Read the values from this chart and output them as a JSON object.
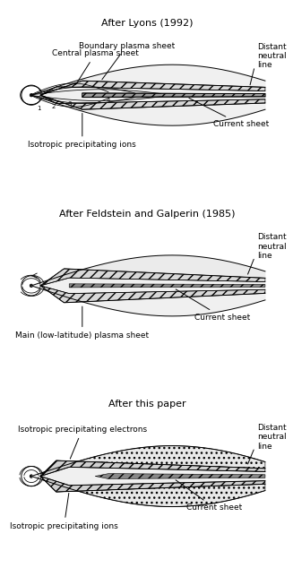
{
  "panel1_title": "After Lyons (1992)",
  "panel2_title": "After Feldstein and Galperin (1985)",
  "panel3_title": "After this paper",
  "bg_color": "#ffffff",
  "line_color": "#000000",
  "hatch_color": "#555555",
  "fill_light": "#e8e8e8",
  "fill_medium": "#cccccc",
  "font_size_title": 8,
  "font_size_label": 6.5,
  "fig_width": 3.27,
  "fig_height": 6.34
}
